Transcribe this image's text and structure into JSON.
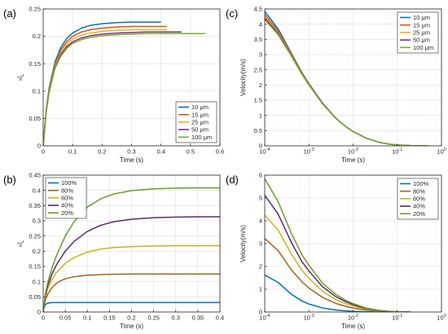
{
  "chart_data": [
    {
      "panel": "(a)",
      "type": "line",
      "xscale": "linear",
      "xlim": [
        0,
        0.6
      ],
      "ylim": [
        0,
        0.25
      ],
      "xticks": [
        0,
        0.1,
        0.2,
        0.3,
        0.4,
        0.5,
        0.6
      ],
      "xtick_labels": [
        "0",
        "0.1",
        "0.2",
        "0.3",
        "0.4",
        "0.5",
        "0.6"
      ],
      "yticks": [
        0,
        0.05,
        0.1,
        0.15,
        0.2,
        0.25
      ],
      "ytick_labels": [
        "0",
        "0.05",
        "0.1",
        "0.15",
        "0.2",
        "0.25"
      ],
      "xlabel": "Time (s)",
      "ylabel": "x/L",
      "ylabel_main": "x",
      "ylabel_sub": "L",
      "grid": true,
      "legend": "bottom-right",
      "series": [
        {
          "name": "10 μm",
          "color": "#0072BD",
          "x": [
            0,
            0.01,
            0.02,
            0.04,
            0.06,
            0.08,
            0.1,
            0.13,
            0.16,
            0.2,
            0.25,
            0.3,
            0.35,
            0.4
          ],
          "y": [
            0,
            0.065,
            0.105,
            0.153,
            0.18,
            0.196,
            0.206,
            0.215,
            0.22,
            0.223,
            0.225,
            0.226,
            0.226,
            0.226
          ]
        },
        {
          "name": "15 μm",
          "color": "#D95319",
          "x": [
            0,
            0.01,
            0.02,
            0.04,
            0.06,
            0.08,
            0.1,
            0.13,
            0.16,
            0.2,
            0.25,
            0.3,
            0.35,
            0.42
          ],
          "y": [
            0,
            0.063,
            0.102,
            0.149,
            0.175,
            0.19,
            0.2,
            0.208,
            0.212,
            0.215,
            0.217,
            0.218,
            0.218,
            0.218
          ]
        },
        {
          "name": "25 μm",
          "color": "#EDB120",
          "x": [
            0,
            0.01,
            0.02,
            0.04,
            0.06,
            0.08,
            0.1,
            0.13,
            0.16,
            0.2,
            0.25,
            0.3,
            0.35,
            0.42
          ],
          "y": [
            0,
            0.062,
            0.1,
            0.146,
            0.17,
            0.185,
            0.195,
            0.202,
            0.206,
            0.209,
            0.211,
            0.212,
            0.212,
            0.212
          ]
        },
        {
          "name": "50 μm",
          "color": "#7E2F8E",
          "x": [
            0,
            0.01,
            0.02,
            0.04,
            0.06,
            0.08,
            0.1,
            0.13,
            0.16,
            0.2,
            0.25,
            0.3,
            0.35,
            0.4,
            0.47
          ],
          "y": [
            0,
            0.061,
            0.098,
            0.143,
            0.167,
            0.181,
            0.19,
            0.197,
            0.201,
            0.204,
            0.206,
            0.207,
            0.208,
            0.208,
            0.208
          ]
        },
        {
          "name": "100 μm",
          "color": "#77AC30",
          "x": [
            0,
            0.01,
            0.02,
            0.04,
            0.06,
            0.08,
            0.1,
            0.13,
            0.16,
            0.2,
            0.25,
            0.3,
            0.35,
            0.4,
            0.45,
            0.55
          ],
          "y": [
            0,
            0.06,
            0.097,
            0.141,
            0.164,
            0.178,
            0.187,
            0.194,
            0.198,
            0.201,
            0.203,
            0.204,
            0.205,
            0.205,
            0.205,
            0.205
          ]
        }
      ]
    },
    {
      "panel": "(b)",
      "type": "line",
      "xscale": "linear",
      "xlim": [
        0,
        0.4
      ],
      "ylim": [
        0,
        0.45
      ],
      "xticks": [
        0,
        0.05,
        0.1,
        0.15,
        0.2,
        0.25,
        0.3,
        0.35,
        0.4
      ],
      "xtick_labels": [
        "0",
        "0.05",
        "0.1",
        "0.15",
        "0.2",
        "0.25",
        "0.3",
        "0.35",
        "0.4"
      ],
      "yticks": [
        0,
        0.05,
        0.1,
        0.15,
        0.2,
        0.25,
        0.3,
        0.35,
        0.4,
        0.45
      ],
      "ytick_labels": [
        "0",
        "0.05",
        "0.1",
        "0.15",
        "0.2",
        "0.25",
        "0.3",
        "0.35",
        "0.4",
        "0.45"
      ],
      "xlabel": "Time (s)",
      "ylabel": "x/L",
      "ylabel_main": "x",
      "ylabel_sub": "L",
      "grid": true,
      "legend": "top-left",
      "series": [
        {
          "name": "100%",
          "color": "#0072BD",
          "x": [
            0,
            0.002,
            0.005,
            0.01,
            0.015,
            0.02,
            0.03,
            0.05,
            0.1,
            0.2,
            0.3,
            0.4
          ],
          "y": [
            0,
            0.015,
            0.024,
            0.029,
            0.03,
            0.031,
            0.031,
            0.031,
            0.031,
            0.031,
            0.031,
            0.031
          ]
        },
        {
          "name": "80%",
          "color": "#A2631F",
          "x": [
            0,
            0.005,
            0.01,
            0.02,
            0.03,
            0.04,
            0.05,
            0.07,
            0.1,
            0.15,
            0.2,
            0.3,
            0.4
          ],
          "y": [
            0,
            0.04,
            0.058,
            0.08,
            0.094,
            0.103,
            0.109,
            0.116,
            0.121,
            0.124,
            0.125,
            0.125,
            0.125
          ]
        },
        {
          "name": "60%",
          "color": "#C8B419",
          "x": [
            0,
            0.005,
            0.01,
            0.02,
            0.03,
            0.05,
            0.07,
            0.1,
            0.13,
            0.16,
            0.2,
            0.25,
            0.3,
            0.4
          ],
          "y": [
            0,
            0.05,
            0.075,
            0.107,
            0.13,
            0.16,
            0.179,
            0.197,
            0.207,
            0.212,
            0.215,
            0.217,
            0.218,
            0.218
          ]
        },
        {
          "name": "40%",
          "color": "#5B2A6E",
          "x": [
            0,
            0.005,
            0.01,
            0.02,
            0.03,
            0.05,
            0.07,
            0.1,
            0.13,
            0.16,
            0.2,
            0.25,
            0.3,
            0.35,
            0.4
          ],
          "y": [
            0,
            0.055,
            0.085,
            0.125,
            0.155,
            0.2,
            0.232,
            0.265,
            0.285,
            0.297,
            0.305,
            0.31,
            0.312,
            0.313,
            0.313
          ]
        },
        {
          "name": "20%",
          "color": "#6E9A2E",
          "x": [
            0,
            0.005,
            0.01,
            0.02,
            0.03,
            0.05,
            0.07,
            0.1,
            0.13,
            0.16,
            0.2,
            0.25,
            0.3,
            0.35,
            0.4
          ],
          "y": [
            0,
            0.06,
            0.095,
            0.145,
            0.185,
            0.25,
            0.297,
            0.345,
            0.372,
            0.388,
            0.399,
            0.405,
            0.407,
            0.408,
            0.408
          ]
        }
      ]
    },
    {
      "panel": "(c)",
      "type": "line",
      "xscale": "log",
      "xlim": [
        0.0001,
        1
      ],
      "ylim": [
        0,
        4.5
      ],
      "xticks": [
        0.0001,
        0.001,
        0.01,
        0.1,
        1
      ],
      "xtick_labels": [
        {
          "base": "10",
          "exp": "-4"
        },
        {
          "base": "10",
          "exp": "-3"
        },
        {
          "base": "10",
          "exp": "-2"
        },
        {
          "base": "10",
          "exp": "-1"
        },
        {
          "base": "10",
          "exp": "0"
        }
      ],
      "yticks": [
        0,
        0.5,
        1,
        1.5,
        2,
        2.5,
        3,
        3.5,
        4,
        4.5
      ],
      "ytick_labels": [
        "0",
        "0.5",
        "1",
        "1.5",
        "2",
        "2.5",
        "3",
        "3.5",
        "4",
        "4.5"
      ],
      "xlabel": "Time (s)",
      "ylabel": "Velocity(m/s)",
      "grid": true,
      "legend": "top-right",
      "series": [
        {
          "name": "10 μm",
          "color": "#0072BD",
          "x": [
            0.0001,
            0.0002,
            0.0004,
            0.0007,
            0.001,
            0.002,
            0.004,
            0.007,
            0.01,
            0.02,
            0.04,
            0.07,
            0.1,
            0.2,
            0.4
          ],
          "y": [
            4.42,
            3.85,
            3.05,
            2.4,
            2.05,
            1.42,
            0.92,
            0.62,
            0.47,
            0.25,
            0.11,
            0.05,
            0.027,
            0.005,
            0
          ]
        },
        {
          "name": "15 μm",
          "color": "#D95319",
          "x": [
            0.0001,
            0.0002,
            0.0004,
            0.0007,
            0.001,
            0.002,
            0.004,
            0.007,
            0.01,
            0.02,
            0.04,
            0.07,
            0.1,
            0.2,
            0.4
          ],
          "y": [
            4.32,
            3.78,
            3.02,
            2.38,
            2.03,
            1.41,
            0.92,
            0.62,
            0.47,
            0.25,
            0.11,
            0.05,
            0.027,
            0.005,
            0
          ]
        },
        {
          "name": "25 μm",
          "color": "#EDB120",
          "x": [
            0.0001,
            0.0002,
            0.0004,
            0.0007,
            0.001,
            0.002,
            0.004,
            0.007,
            0.01,
            0.02,
            0.04,
            0.07,
            0.1,
            0.2,
            0.4
          ],
          "y": [
            4.25,
            3.73,
            2.99,
            2.36,
            2.02,
            1.4,
            0.91,
            0.62,
            0.47,
            0.25,
            0.11,
            0.05,
            0.027,
            0.005,
            0
          ]
        },
        {
          "name": "50 μm",
          "color": "#7E2F8E",
          "x": [
            0.0001,
            0.0002,
            0.0004,
            0.0007,
            0.001,
            0.002,
            0.004,
            0.007,
            0.01,
            0.02,
            0.04,
            0.07,
            0.1,
            0.2,
            0.47
          ],
          "y": [
            4.2,
            3.7,
            2.97,
            2.35,
            2.01,
            1.4,
            0.91,
            0.62,
            0.47,
            0.25,
            0.11,
            0.05,
            0.027,
            0.005,
            0
          ]
        },
        {
          "name": "100 μm",
          "color": "#77AC30",
          "x": [
            0.0001,
            0.0002,
            0.0004,
            0.0007,
            0.001,
            0.002,
            0.004,
            0.007,
            0.01,
            0.02,
            0.04,
            0.07,
            0.1,
            0.2,
            0.55
          ],
          "y": [
            4.15,
            3.66,
            2.95,
            2.34,
            2.0,
            1.39,
            0.91,
            0.62,
            0.47,
            0.25,
            0.11,
            0.05,
            0.027,
            0.005,
            0
          ]
        }
      ]
    },
    {
      "panel": "(d)",
      "type": "line",
      "xscale": "log",
      "xlim": [
        0.0001,
        1
      ],
      "ylim": [
        0,
        6
      ],
      "xticks": [
        0.0001,
        0.001,
        0.01,
        0.1,
        1
      ],
      "xtick_labels": [
        {
          "base": "10",
          "exp": "-4"
        },
        {
          "base": "10",
          "exp": "-3"
        },
        {
          "base": "10",
          "exp": "-2"
        },
        {
          "base": "10",
          "exp": "-1"
        },
        {
          "base": "10",
          "exp": "0"
        }
      ],
      "yticks": [
        0,
        1,
        2,
        3,
        4,
        5,
        6
      ],
      "ytick_labels": [
        "0",
        "1",
        "2",
        "3",
        "4",
        "5",
        "6"
      ],
      "xlabel": "Time (s)",
      "ylabel": "Velocity(m/s)",
      "grid": true,
      "legend": "top-right",
      "series": [
        {
          "name": "100%",
          "color": "#0072BD",
          "x": [
            0.0001,
            0.0002,
            0.0004,
            0.0007,
            0.001,
            0.002,
            0.004,
            0.007,
            0.01,
            0.02,
            0.05,
            0.1
          ],
          "y": [
            1.62,
            1.3,
            0.78,
            0.48,
            0.35,
            0.18,
            0.09,
            0.05,
            0.03,
            0.01,
            0,
            0
          ]
        },
        {
          "name": "80%",
          "color": "#A2631F",
          "x": [
            0.0001,
            0.0002,
            0.0004,
            0.0007,
            0.001,
            0.002,
            0.004,
            0.007,
            0.01,
            0.02,
            0.04,
            0.07,
            0.1,
            0.2
          ],
          "y": [
            3.22,
            2.7,
            1.85,
            1.32,
            1.05,
            0.65,
            0.38,
            0.24,
            0.17,
            0.08,
            0.03,
            0.01,
            0.005,
            0
          ]
        },
        {
          "name": "60%",
          "color": "#C8B419",
          "x": [
            0.0001,
            0.0002,
            0.0004,
            0.0007,
            0.001,
            0.002,
            0.004,
            0.007,
            0.01,
            0.02,
            0.04,
            0.07,
            0.1,
            0.2
          ],
          "y": [
            4.25,
            3.6,
            2.55,
            1.82,
            1.48,
            0.92,
            0.55,
            0.35,
            0.26,
            0.12,
            0.05,
            0.02,
            0.01,
            0
          ]
        },
        {
          "name": "40%",
          "color": "#5B2A6E",
          "x": [
            0.0001,
            0.0002,
            0.0004,
            0.0007,
            0.001,
            0.002,
            0.004,
            0.007,
            0.01,
            0.02,
            0.04,
            0.07,
            0.1,
            0.2
          ],
          "y": [
            5.12,
            4.3,
            3.05,
            2.2,
            1.8,
            1.12,
            0.68,
            0.44,
            0.32,
            0.15,
            0.06,
            0.02,
            0.01,
            0
          ]
        },
        {
          "name": "20%",
          "color": "#6E9A2E",
          "x": [
            0.0001,
            0.0002,
            0.0004,
            0.0007,
            0.001,
            0.002,
            0.004,
            0.007,
            0.01,
            0.02,
            0.04,
            0.07,
            0.1,
            0.2
          ],
          "y": [
            5.85,
            4.85,
            3.45,
            2.5,
            2.05,
            1.28,
            0.78,
            0.5,
            0.37,
            0.17,
            0.07,
            0.03,
            0.012,
            0
          ]
        }
      ]
    }
  ]
}
